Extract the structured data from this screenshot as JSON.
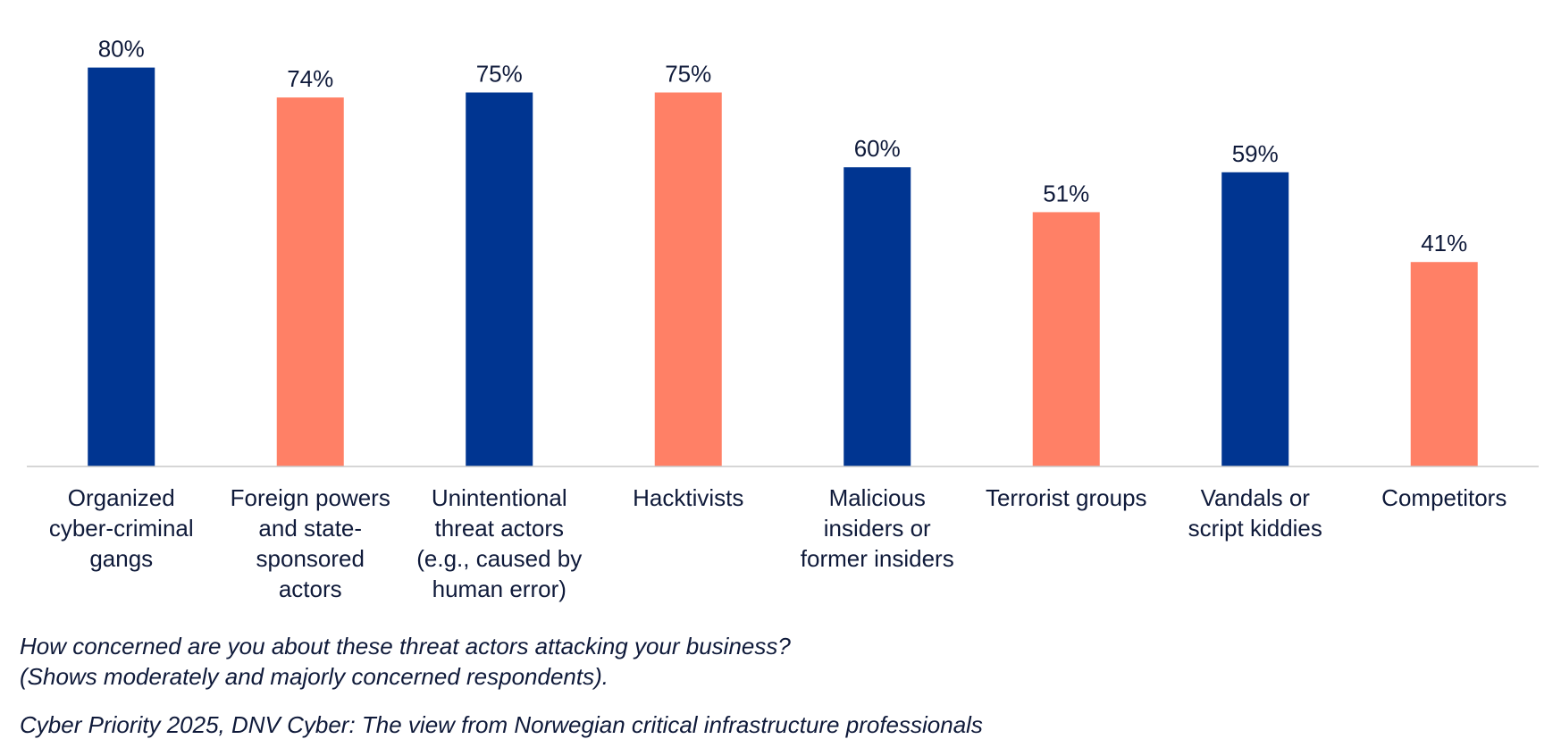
{
  "chart_data": {
    "type": "bar",
    "categories": [
      [
        "Organized",
        "cyber-criminal",
        "gangs"
      ],
      [
        "Foreign powers",
        "and state-",
        "sponsored",
        "actors"
      ],
      [
        "Unintentional",
        "threat actors",
        "(e.g., caused by",
        "human error)"
      ],
      [
        "Hacktivists"
      ],
      [
        "Malicious",
        "insiders or",
        "former insiders"
      ],
      [
        "Terrorist groups"
      ],
      [
        "Vandals or",
        "script kiddies"
      ],
      [
        "Competitors"
      ]
    ],
    "values": [
      80,
      74,
      75,
      75,
      60,
      51,
      59,
      41
    ],
    "value_labels": [
      "80%",
      "74%",
      "75%",
      "75%",
      "60%",
      "51%",
      "59%",
      "41%"
    ],
    "colors": [
      "#003591",
      "#ff8066",
      "#003591",
      "#ff8066",
      "#003591",
      "#ff8066",
      "#003591",
      "#ff8066"
    ],
    "ylim": [
      0,
      85
    ],
    "grid": false,
    "legend": "none",
    "title": "",
    "xlabel": "",
    "ylabel": ""
  },
  "footer": {
    "question": "How concerned are you about these threat actors attacking your business?",
    "note": "(Shows moderately and majorly concerned respondents).",
    "source": "Cyber Priority 2025, DNV Cyber: The view from Norwegian critical infrastructure professionals"
  }
}
